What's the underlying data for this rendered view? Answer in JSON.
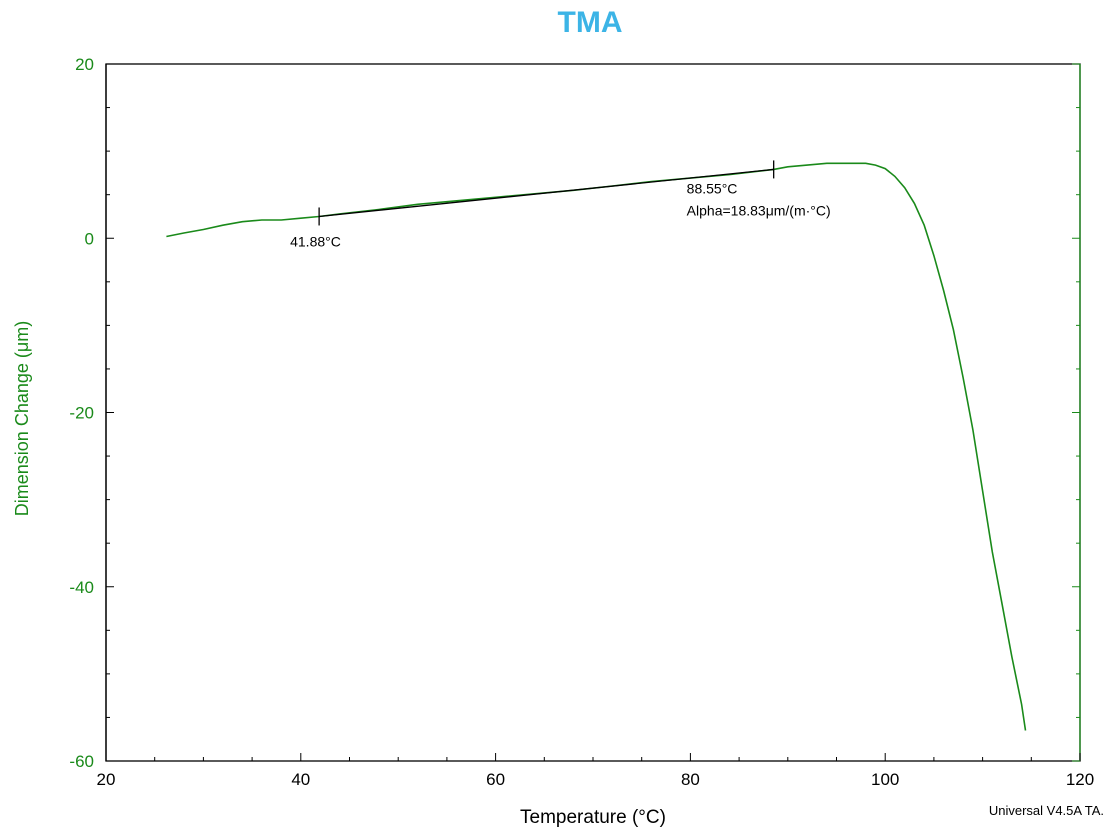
{
  "chart_data": {
    "type": "line",
    "title": "TMA",
    "xlabel": "Temperature (°C)",
    "ylabel": "Dimension Change (μm)",
    "xlim": [
      20,
      120
    ],
    "ylim": [
      -60,
      20
    ],
    "xticks": [
      20,
      40,
      60,
      80,
      100,
      120
    ],
    "yticks": [
      20,
      0,
      -20,
      -40,
      -60
    ],
    "grid": false,
    "colors": {
      "curve": "#1a8a1a",
      "axis_text": "#1a8a1a",
      "fit_line": "#000000",
      "title": "#3cb4e6"
    },
    "series": [
      {
        "x": [
          26.2,
          28,
          30,
          32,
          34,
          36,
          38,
          40,
          41.88,
          44,
          48,
          52,
          56,
          60,
          64,
          68,
          72,
          76,
          80,
          84,
          88.55,
          90,
          92,
          94,
          96,
          98,
          99,
          100,
          101,
          102,
          103,
          104,
          105,
          106,
          107,
          108,
          109,
          110,
          111,
          112,
          113,
          114,
          114.4
        ],
        "y": [
          0.2,
          0.6,
          1.0,
          1.5,
          1.9,
          2.1,
          2.1,
          2.3,
          2.5,
          2.8,
          3.3,
          3.9,
          4.3,
          4.7,
          5.1,
          5.5,
          6.0,
          6.5,
          6.9,
          7.3,
          7.9,
          8.2,
          8.4,
          8.6,
          8.6,
          8.6,
          8.4,
          8.0,
          7.1,
          5.8,
          4.0,
          1.5,
          -2.0,
          -6.0,
          -10.5,
          -16.0,
          -22.0,
          -29.0,
          -36.0,
          -42.0,
          -48.0,
          -53.5,
          -56.5
        ]
      }
    ],
    "annotations": {
      "start_label": "41.88°C",
      "end_label": "88.55°C",
      "alpha_label": "Alpha=18.83μm/(m·°C)",
      "fit": {
        "x1": 41.88,
        "y1": 2.5,
        "x2": 88.55,
        "y2": 7.9
      }
    }
  },
  "footer": "Universal V4.5A TA."
}
